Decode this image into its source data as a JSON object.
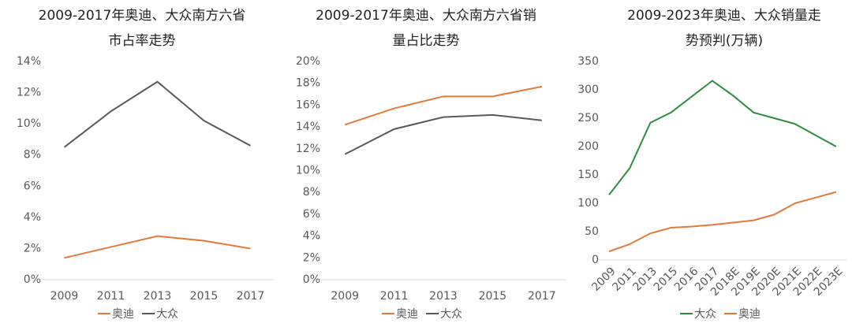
{
  "chart_data": [
    {
      "type": "line",
      "title": [
        "2009-2017年奥迪、大众南方六省",
        "市占率走势"
      ],
      "categories": [
        "2009",
        "2011",
        "2013",
        "2015",
        "2017"
      ],
      "series": [
        {
          "name": "奥迪",
          "color": "#e07b39",
          "values": [
            1.4,
            2.1,
            2.8,
            2.5,
            2.0
          ]
        },
        {
          "name": "大众",
          "color": "#595959",
          "values": [
            8.5,
            10.8,
            12.7,
            10.2,
            8.6
          ]
        }
      ],
      "ylim": [
        0,
        14
      ],
      "yticks": [
        {
          "value": 0,
          "label": "0%"
        },
        {
          "value": 2,
          "label": "2%"
        },
        {
          "value": 4,
          "label": "4%"
        },
        {
          "value": 6,
          "label": "6%"
        },
        {
          "value": 8,
          "label": "8%"
        },
        {
          "value": 10,
          "label": "10%"
        },
        {
          "value": 12,
          "label": "12%"
        },
        {
          "value": 14,
          "label": "14%"
        }
      ]
    },
    {
      "type": "line",
      "title": [
        "2009-2017年奥迪、大众南方六省销",
        "量占比走势"
      ],
      "categories": [
        "2009",
        "2011",
        "2013",
        "2015",
        "2017"
      ],
      "series": [
        {
          "name": "奥迪",
          "color": "#e07b39",
          "values": [
            14.2,
            15.7,
            16.8,
            16.8,
            17.7
          ]
        },
        {
          "name": "大众",
          "color": "#595959",
          "values": [
            11.5,
            13.8,
            14.9,
            15.1,
            14.6
          ]
        }
      ],
      "ylim": [
        0,
        20
      ],
      "yticks": [
        {
          "value": 0,
          "label": "0%"
        },
        {
          "value": 2,
          "label": "2%"
        },
        {
          "value": 4,
          "label": "4%"
        },
        {
          "value": 6,
          "label": "6%"
        },
        {
          "value": 8,
          "label": "8%"
        },
        {
          "value": 10,
          "label": "10%"
        },
        {
          "value": 12,
          "label": "12%"
        },
        {
          "value": 14,
          "label": "14%"
        },
        {
          "value": 16,
          "label": "16%"
        },
        {
          "value": 18,
          "label": "18%"
        },
        {
          "value": 20,
          "label": "20%"
        }
      ]
    },
    {
      "type": "line",
      "title": [
        "2009-2023年奥迪、大众销量走",
        "势预判(万辆)"
      ],
      "categories": [
        "2009",
        "2011",
        "2013",
        "2015",
        "2016",
        "2017",
        "2018E",
        "2019E",
        "2020E",
        "2021E",
        "2022E",
        "2023E"
      ],
      "series": [
        {
          "name": "大众",
          "color": "#2e8b3e",
          "values": [
            115,
            162,
            242,
            260,
            288,
            316,
            290,
            260,
            250,
            240,
            220,
            200
          ]
        },
        {
          "name": "奥迪",
          "color": "#e07b39",
          "values": [
            15,
            28,
            47,
            57,
            59,
            62,
            66,
            70,
            80,
            100,
            110,
            120
          ]
        }
      ],
      "ylim": [
        0,
        350
      ],
      "yticks": [
        0,
        50,
        100,
        150,
        200,
        250,
        300,
        350
      ],
      "rotate_x_labels": true
    }
  ]
}
